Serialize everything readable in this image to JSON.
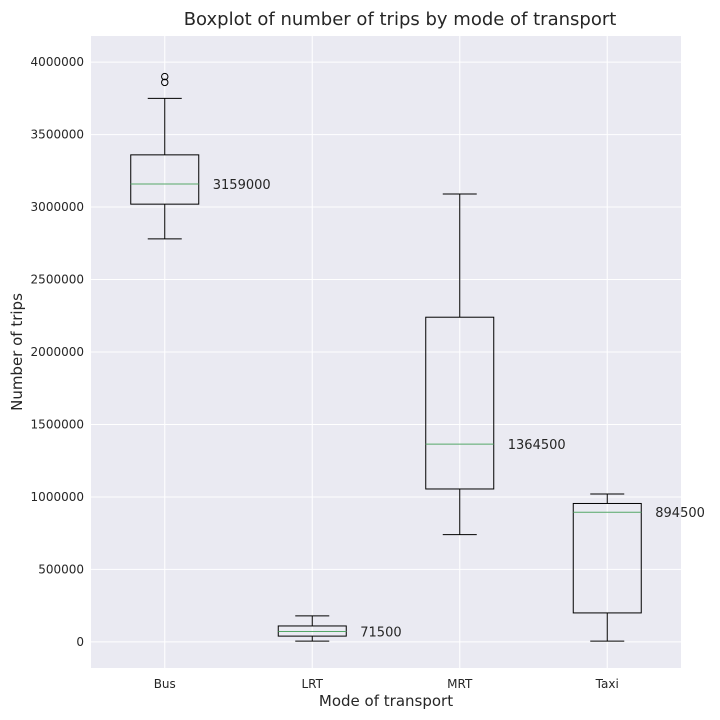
{
  "chart_data": {
    "type": "boxplot",
    "title": "Boxplot of number of trips by mode of transport",
    "xlabel": "Mode of transport",
    "ylabel": "Number of trips",
    "ylim": [
      -180000,
      4180000
    ],
    "yticks": [
      0,
      500000,
      1000000,
      1500000,
      2000000,
      2500000,
      3000000,
      3500000,
      4000000
    ],
    "grid": true,
    "colors": {
      "background": "#eaeaf2",
      "grid": "#ffffff",
      "median": "#55a868",
      "box": "#000000"
    },
    "categories": [
      "Bus",
      "LRT",
      "MRT",
      "Taxi"
    ],
    "boxes": [
      {
        "category": "Bus",
        "whislo": 2780000,
        "q1": 3020000,
        "median": 3159000,
        "q3": 3360000,
        "whishi": 3750000,
        "fliers": [
          3860000,
          3900000
        ],
        "median_label": "3159000"
      },
      {
        "category": "LRT",
        "whislo": 5000,
        "q1": 40000,
        "median": 71500,
        "q3": 110000,
        "whishi": 180000,
        "fliers": [],
        "median_label": "71500"
      },
      {
        "category": "MRT",
        "whislo": 740000,
        "q1": 1055000,
        "median": 1364500,
        "q3": 2240000,
        "whishi": 3090000,
        "fliers": [],
        "median_label": "1364500"
      },
      {
        "category": "Taxi",
        "whislo": 5000,
        "q1": 200000,
        "median": 894500,
        "q3": 955000,
        "whishi": 1020000,
        "fliers": [],
        "median_label": "894500"
      }
    ]
  }
}
